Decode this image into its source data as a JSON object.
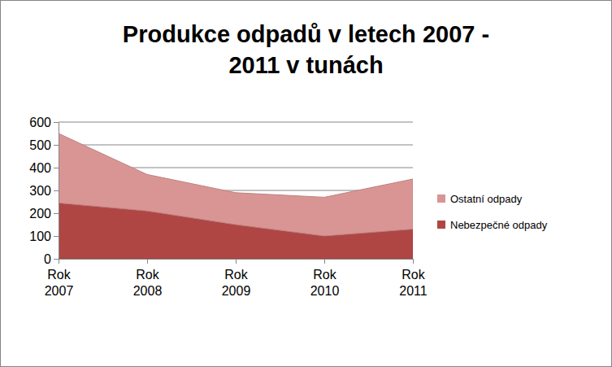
{
  "chart_data": {
    "type": "area",
    "title": "Produkce odpadů v letech 2007 - 2011 v tunách",
    "categories": [
      "Rok 2007",
      "Rok 2008",
      "Rok 2009",
      "Rok 2010",
      "Rok 2011"
    ],
    "series": [
      {
        "name": "Nebezpečné odpady",
        "color": "#b04644",
        "values": [
          245,
          210,
          150,
          100,
          130
        ]
      },
      {
        "name": "Ostatní odpady",
        "color": "#d99594",
        "values": [
          305,
          160,
          140,
          170,
          220
        ]
      }
    ],
    "stacked": true,
    "ylim": [
      0,
      600
    ],
    "yticks": [
      0,
      100,
      200,
      300,
      400,
      500,
      600
    ],
    "grid": true,
    "legend": "right"
  }
}
